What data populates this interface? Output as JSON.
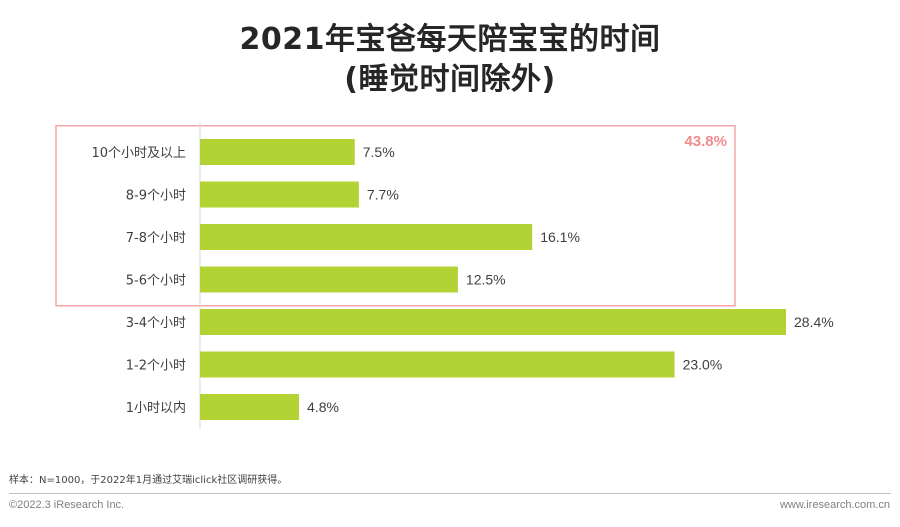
{
  "title": {
    "line1": "2021年宝爸每天陪宝宝的时间",
    "line2": "(睡觉时间除外)"
  },
  "chart_data": {
    "type": "bar",
    "orientation": "horizontal",
    "categories": [
      "10个小时及以上",
      "8-9个小时",
      "7-8个小时",
      "5-6个小时",
      "3-4个小时",
      "1-2个小时",
      "1小时以内"
    ],
    "values": [
      7.5,
      7.7,
      16.1,
      12.5,
      28.4,
      23.0,
      4.8
    ],
    "value_labels": [
      "7.5%",
      "7.7%",
      "16.1%",
      "12.5%",
      "28.4%",
      "23.0%",
      "4.8%"
    ],
    "unit": "%",
    "bar_color": "#b3d335",
    "xlim": [
      0,
      28.4
    ],
    "grid": false,
    "highlight": {
      "categories": [
        "10个小时及以上",
        "8-9个小时",
        "7-8个小时",
        "5-6个小时"
      ],
      "label": "43.8%",
      "color": "#f4a6a6"
    }
  },
  "footer": {
    "note": "样本：N=1000，于2022年1月通过艾瑞iclick社区调研获得。",
    "copyright": "©2022.3 iResearch Inc.",
    "website": "www.iresearch.com.cn"
  }
}
